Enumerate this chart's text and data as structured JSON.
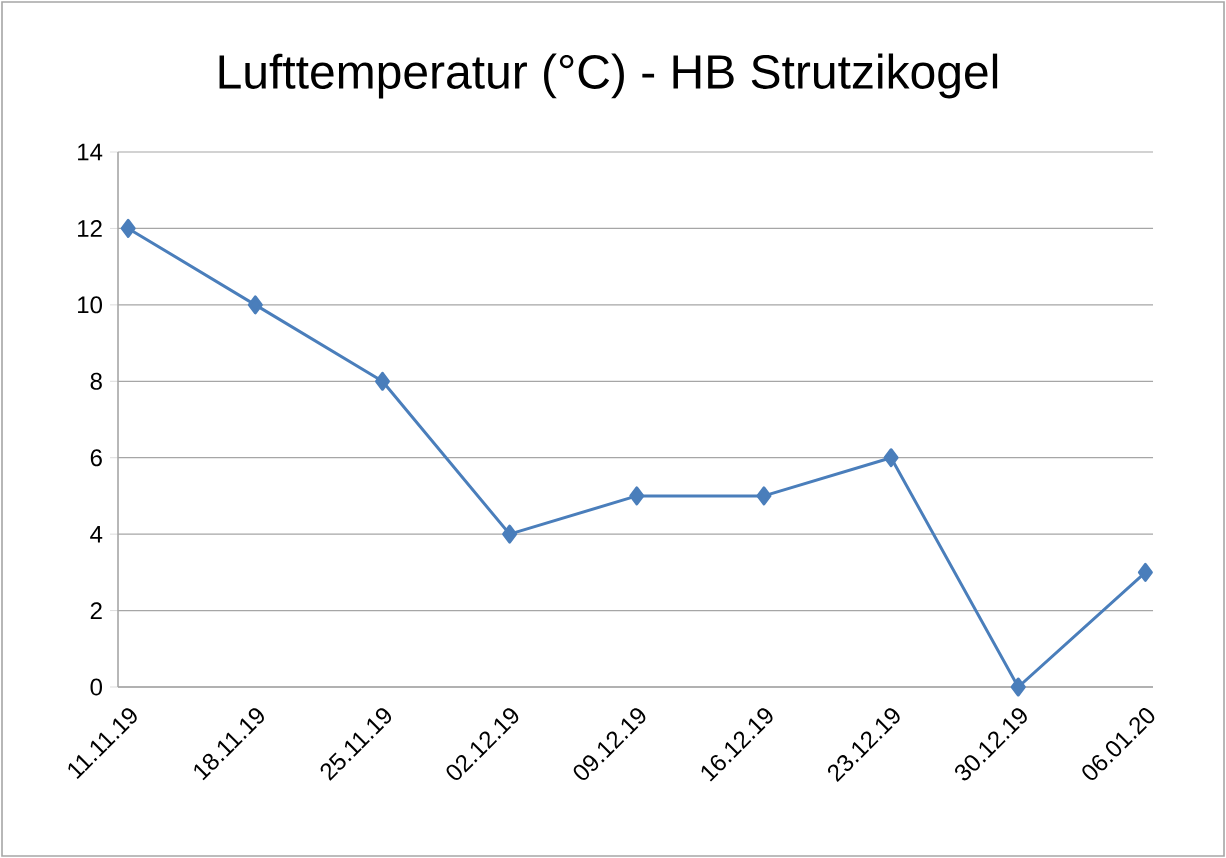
{
  "chart_data": {
    "type": "line",
    "title": "Lufttemperatur (°C) - HB Strutzikogel",
    "categories": [
      "11.11.19",
      "18.11.19",
      "25.11.19",
      "02.12.19",
      "09.12.19",
      "16.12.19",
      "23.12.19",
      "30.12.19",
      "06.01.20"
    ],
    "values": [
      12,
      10,
      8,
      4,
      5,
      5,
      6,
      0,
      3
    ],
    "color": "#4a7ebb",
    "ylim": [
      0,
      14
    ],
    "yticks": [
      0,
      2,
      4,
      6,
      8,
      10,
      12,
      14
    ],
    "grid": "y",
    "marker": "diamond",
    "line_style": "solid"
  }
}
